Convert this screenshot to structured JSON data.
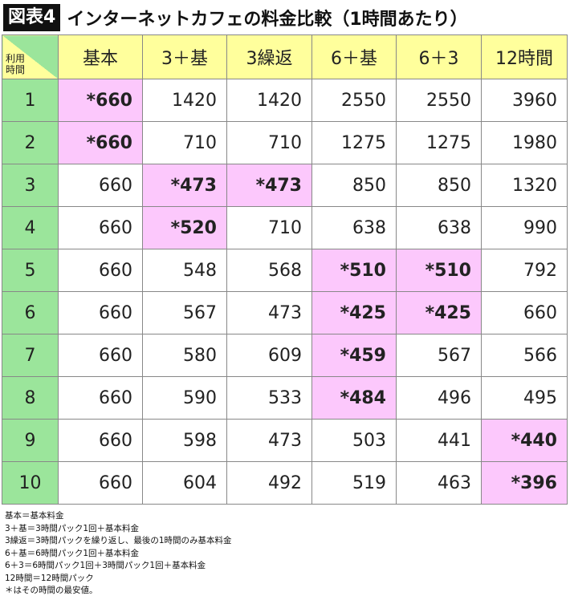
{
  "title": {
    "badge": "図表4",
    "text": "インターネットカフェの料金比較（1時間あたり）"
  },
  "table": {
    "corner": "利用\n時間",
    "columns": [
      "基本",
      "3＋基",
      "3繰返",
      "6＋基",
      "6＋3",
      "12時間"
    ],
    "rows": [
      {
        "hours": "1",
        "values": [
          "*660",
          "1420",
          "1420",
          "2550",
          "2550",
          "3960"
        ]
      },
      {
        "hours": "2",
        "values": [
          "*660",
          "710",
          "710",
          "1275",
          "1275",
          "1980"
        ]
      },
      {
        "hours": "3",
        "values": [
          "660",
          "*473",
          "*473",
          "850",
          "850",
          "1320"
        ]
      },
      {
        "hours": "4",
        "values": [
          "660",
          "*520",
          "710",
          "638",
          "638",
          "990"
        ]
      },
      {
        "hours": "5",
        "values": [
          "660",
          "548",
          "568",
          "*510",
          "*510",
          "792"
        ]
      },
      {
        "hours": "6",
        "values": [
          "660",
          "567",
          "473",
          "*425",
          "*425",
          "660"
        ]
      },
      {
        "hours": "7",
        "values": [
          "660",
          "580",
          "609",
          "*459",
          "567",
          "566"
        ]
      },
      {
        "hours": "8",
        "values": [
          "660",
          "590",
          "533",
          "*484",
          "496",
          "495"
        ]
      },
      {
        "hours": "9",
        "values": [
          "660",
          "598",
          "473",
          "503",
          "441",
          "*440"
        ]
      },
      {
        "hours": "10",
        "values": [
          "660",
          "604",
          "492",
          "519",
          "463",
          "*396"
        ]
      }
    ]
  },
  "colors": {
    "header": "#ffff9c",
    "row_header": "#9be59b",
    "cheapest": "#fcc8fc"
  },
  "notes": [
    "基本＝基本料金",
    "3＋基＝3時間パック1回＋基本料金",
    "3繰返＝3時間パックを繰り返し、最後の1時間のみ基本料金",
    "6＋基＝6時間パック1回＋基本料金",
    "6＋3＝6時間パック1回＋3時間パック1回＋基本料金",
    "12時間＝12時間パック",
    "＊はその時間の最安値。"
  ]
}
